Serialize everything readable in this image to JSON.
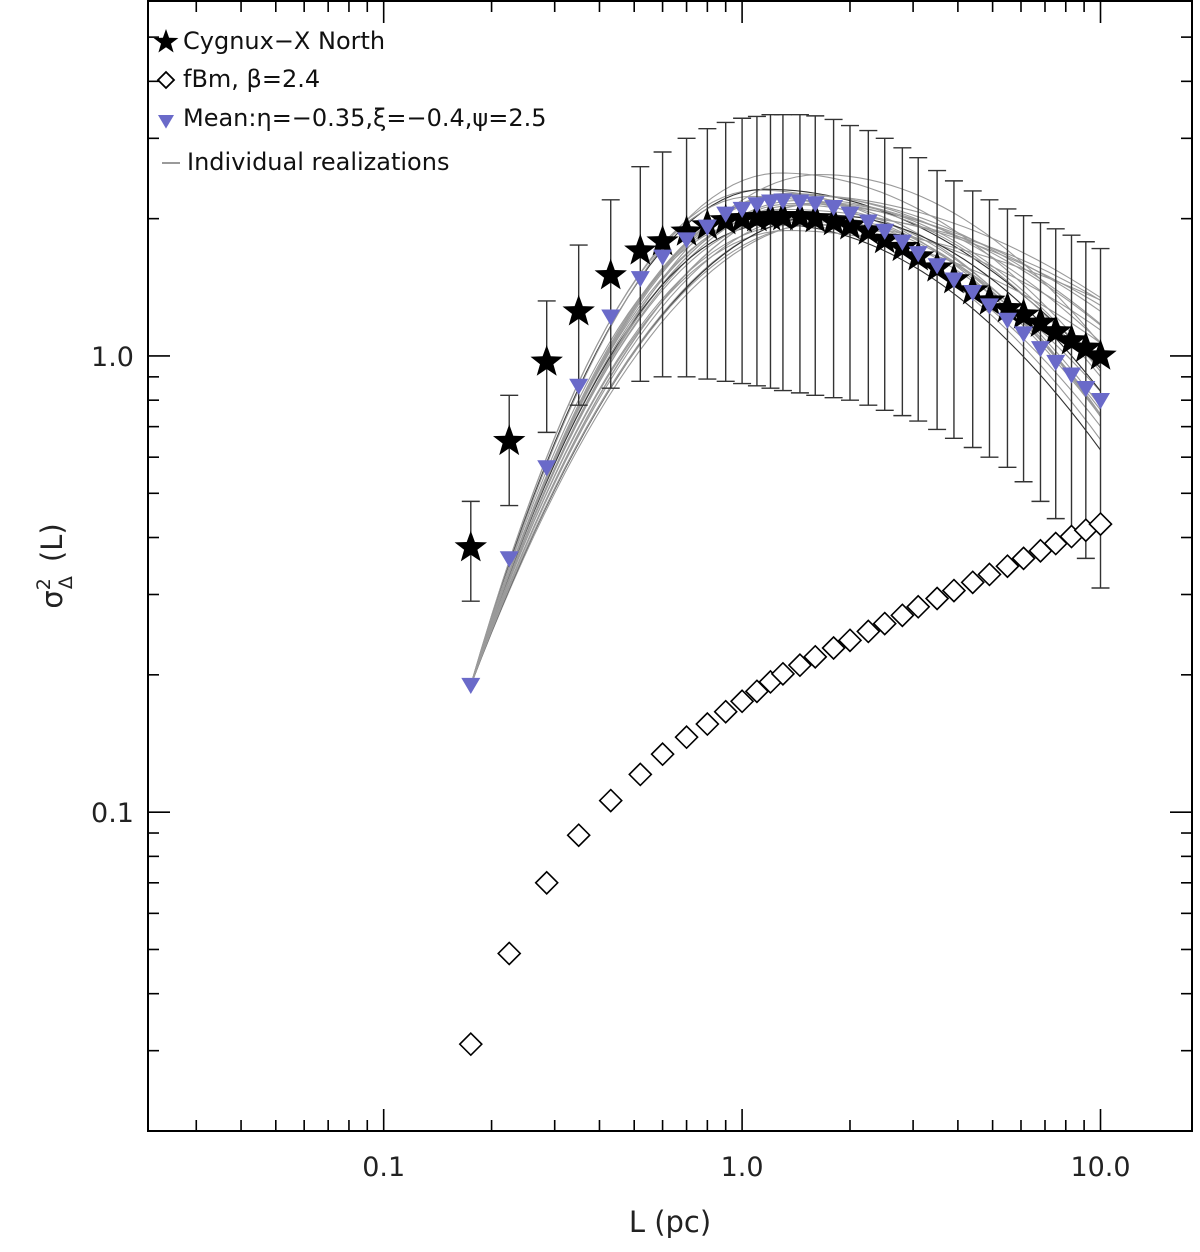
{
  "chart_data": {
    "type": "scatter",
    "title": "",
    "xlabel": "L (pc)",
    "ylabel_symbol": "σ",
    "ylabel_superscript": "2",
    "ylabel_subscript": "Δ",
    "ylabel_arg": "(L)",
    "xscale": "log",
    "yscale": "log",
    "xlim": [
      0.022,
      18
    ],
    "ylim": [
      0.02,
      6
    ],
    "xticks": [
      {
        "value": 0.1,
        "label": "0.1"
      },
      {
        "value": 1.0,
        "label": "1.0"
      },
      {
        "value": 10.0,
        "label": "10.0"
      }
    ],
    "yticks": [
      {
        "value": 0.1,
        "label": "0.1"
      },
      {
        "value": 1.0,
        "label": "1.0"
      }
    ],
    "legend": {
      "position": "top-left",
      "entries": [
        {
          "key": "cygnus",
          "label": "Cygnux−X North",
          "marker": "star"
        },
        {
          "key": "fbm",
          "label": "fBm, β=2.4",
          "marker": "diamond"
        },
        {
          "key": "mean",
          "label": "Mean:η=−0.35,ξ=−0.4,ψ=2.5",
          "marker": "triangle-down"
        },
        {
          "key": "indiv",
          "label": "Individual realizations",
          "marker": "line"
        }
      ]
    },
    "colors": {
      "cygnus": "#000000",
      "fbm": "#000000",
      "mean": "#6a6ac9",
      "realizations": "#9a9a9a",
      "realizations_dark": "#333333",
      "errorbar": "#333333",
      "axis": "#000000"
    },
    "x": [
      0.175,
      0.224,
      0.285,
      0.35,
      0.43,
      0.52,
      0.6,
      0.7,
      0.8,
      0.9,
      1.0,
      1.1,
      1.2,
      1.3,
      1.45,
      1.6,
      1.8,
      2.0,
      2.25,
      2.5,
      2.8,
      3.1,
      3.5,
      3.9,
      4.4,
      4.9,
      5.5,
      6.1,
      6.8,
      7.5,
      8.3,
      9.1,
      10.0
    ],
    "series": [
      {
        "name": "Cygnux−X North",
        "x": [
          0.175,
          0.224,
          0.285,
          0.35,
          0.43,
          0.52,
          0.6,
          0.7,
          0.8,
          0.9,
          1.0,
          1.1,
          1.2,
          1.3,
          1.45,
          1.6,
          1.8,
          2.0,
          2.25,
          2.5,
          2.8,
          3.1,
          3.5,
          3.9,
          4.4,
          4.9,
          5.5,
          6.1,
          6.8,
          7.5,
          8.3,
          9.1,
          10.0
        ],
        "values": [
          0.38,
          0.65,
          0.97,
          1.25,
          1.5,
          1.7,
          1.78,
          1.87,
          1.93,
          1.98,
          2.0,
          2.01,
          2.02,
          2.02,
          2.02,
          2.0,
          1.97,
          1.93,
          1.88,
          1.8,
          1.73,
          1.65,
          1.56,
          1.47,
          1.39,
          1.32,
          1.27,
          1.23,
          1.18,
          1.13,
          1.08,
          1.04,
          1.0
        ],
        "error_upper": [
          0.48,
          0.82,
          1.32,
          1.75,
          2.2,
          2.6,
          2.8,
          3.0,
          3.15,
          3.25,
          3.32,
          3.35,
          3.38,
          3.38,
          3.38,
          3.36,
          3.3,
          3.2,
          3.12,
          3.0,
          2.86,
          2.72,
          2.55,
          2.42,
          2.3,
          2.2,
          2.1,
          2.03,
          1.96,
          1.9,
          1.84,
          1.78,
          1.72
        ],
        "error_lower": [
          0.29,
          0.47,
          0.68,
          0.78,
          0.85,
          0.88,
          0.9,
          0.9,
          0.89,
          0.88,
          0.87,
          0.86,
          0.85,
          0.84,
          0.83,
          0.82,
          0.81,
          0.8,
          0.78,
          0.76,
          0.74,
          0.72,
          0.69,
          0.66,
          0.63,
          0.6,
          0.57,
          0.53,
          0.48,
          0.44,
          0.4,
          0.36,
          0.31
        ]
      },
      {
        "name": "fBm, β=2.4",
        "x": [
          0.175,
          0.224,
          0.285,
          0.35,
          0.43,
          0.52,
          0.6,
          0.7,
          0.8,
          0.9,
          1.0,
          1.1,
          1.2,
          1.3,
          1.45,
          1.6,
          1.8,
          2.0,
          2.25,
          2.5,
          2.8,
          3.1,
          3.5,
          3.9,
          4.4,
          4.9,
          5.5,
          6.1,
          6.8,
          7.5,
          8.3,
          9.1,
          10.0
        ],
        "values": [
          0.031,
          0.049,
          0.07,
          0.089,
          0.106,
          0.121,
          0.134,
          0.146,
          0.156,
          0.166,
          0.175,
          0.184,
          0.193,
          0.201,
          0.21,
          0.219,
          0.229,
          0.238,
          0.249,
          0.259,
          0.27,
          0.282,
          0.294,
          0.306,
          0.319,
          0.332,
          0.346,
          0.36,
          0.374,
          0.388,
          0.402,
          0.415,
          0.428
        ]
      },
      {
        "name": "Mean:η=−0.35,ξ=−0.4,ψ=2.5",
        "x": [
          0.175,
          0.224,
          0.285,
          0.35,
          0.43,
          0.52,
          0.6,
          0.7,
          0.8,
          0.9,
          1.0,
          1.1,
          1.2,
          1.3,
          1.45,
          1.6,
          1.8,
          2.0,
          2.25,
          2.5,
          2.8,
          3.1,
          3.5,
          3.9,
          4.4,
          4.9,
          5.5,
          6.1,
          6.8,
          7.5,
          8.3,
          9.1,
          10.0
        ],
        "values": [
          0.19,
          0.36,
          0.57,
          0.86,
          1.22,
          1.48,
          1.65,
          1.8,
          1.92,
          2.05,
          2.1,
          2.15,
          2.18,
          2.19,
          2.18,
          2.16,
          2.12,
          2.05,
          1.97,
          1.88,
          1.78,
          1.68,
          1.58,
          1.47,
          1.38,
          1.29,
          1.2,
          1.12,
          1.04,
          0.97,
          0.91,
          0.85,
          0.8
        ]
      }
    ],
    "realizations": {
      "x_start": 0.175,
      "x_end": 10.0,
      "count": 26,
      "amplitude_range": [
        1.85,
        2.55
      ],
      "peak_L_range": [
        1.05,
        1.75
      ],
      "width_range": [
        1.0,
        1.4
      ],
      "tail_range": [
        0.55,
        1.35
      ]
    }
  }
}
